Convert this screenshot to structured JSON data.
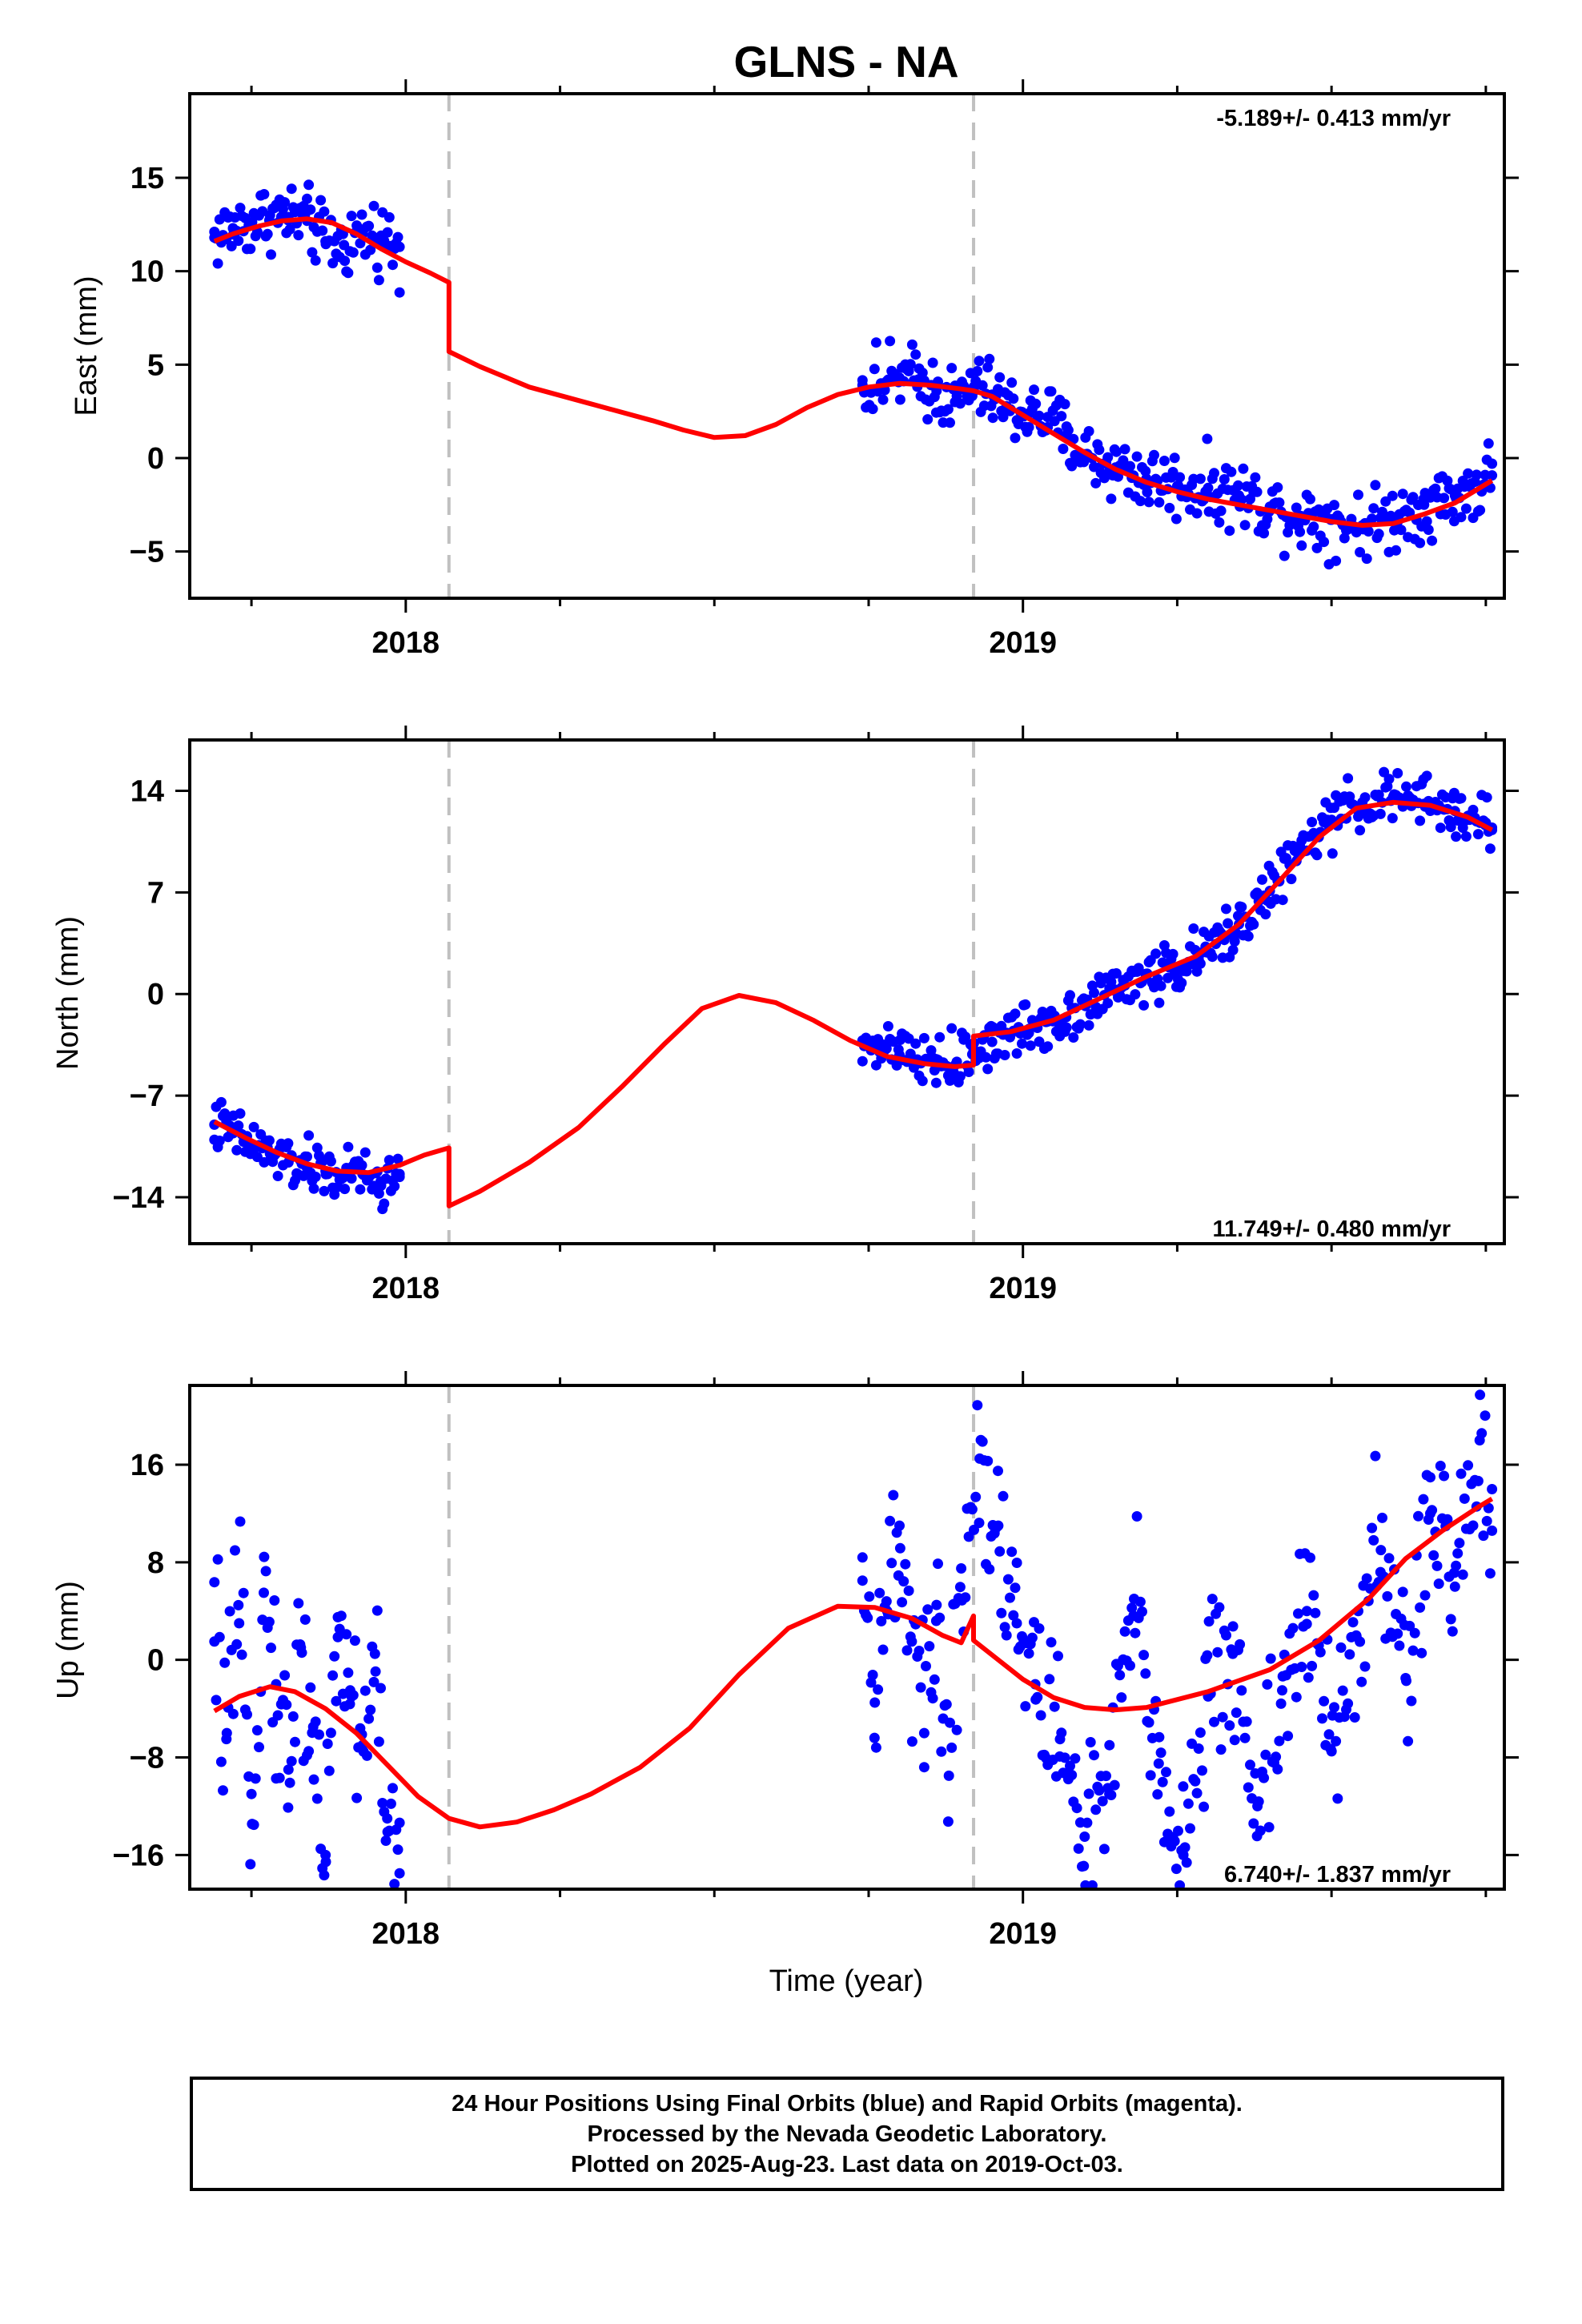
{
  "title": "GLNS - NA",
  "xlabel": "Time (year)",
  "colors": {
    "data": "#0000ff",
    "model": "#ff0000",
    "break_line": "#c0c0c0"
  },
  "footer": {
    "line1": "24 Hour Positions Using Final Orbits (blue) and Rapid Orbits (magenta).",
    "line2": "Processed by the Nevada Geodetic Laboratory.",
    "line3": "Plotted on 2025-Aug-23. Last data on 2019-Oct-03."
  },
  "chart_data": [
    {
      "type": "scatter",
      "ylabel": "East (mm)",
      "rate_text": "-5.189+/- 0.413 mm/yr",
      "xlim": [
        2017.65,
        2019.78
      ],
      "ylim": [
        -7.5,
        19.5
      ],
      "xticks": [
        2018,
        2019
      ],
      "yticks": [
        -5,
        0,
        5,
        10,
        15
      ],
      "ytick_labels": [
        "−5",
        "0",
        "5",
        "10",
        "15"
      ],
      "breaks": [
        2018.07,
        2018.92
      ],
      "data_segments": [
        {
          "x": [
            2017.69,
            2017.72,
            2017.75,
            2017.78,
            2017.81,
            2017.84,
            2017.87,
            2017.9,
            2017.93,
            2017.96,
            2017.99
          ],
          "y": [
            11.8,
            12.3,
            12.6,
            13.0,
            12.9,
            12.7,
            11.6,
            11.4,
            12.0,
            11.9,
            11.3
          ]
        },
        {
          "x": [
            2018.74,
            2018.77,
            2018.8,
            2018.83,
            2018.86,
            2018.89,
            2018.92,
            2018.95,
            2018.98,
            2019.01,
            2019.04,
            2019.07,
            2019.1,
            2019.15,
            2019.2,
            2019.25,
            2019.3,
            2019.35,
            2019.4,
            2019.45,
            2019.5,
            2019.55,
            2019.6,
            2019.65,
            2019.7,
            2019.75,
            2019.76
          ],
          "y": [
            3.9,
            4.0,
            4.3,
            4.2,
            3.6,
            3.0,
            3.8,
            3.4,
            2.6,
            2.4,
            2.2,
            1.2,
            0.2,
            -0.5,
            -1.1,
            -1.5,
            -1.6,
            -2.0,
            -2.6,
            -3.1,
            -3.3,
            -3.6,
            -3.2,
            -2.5,
            -2.0,
            -1.4,
            -0.3
          ]
        }
      ],
      "model": {
        "x": [
          2017.69,
          2017.72,
          2017.76,
          2017.8,
          2017.84,
          2017.88,
          2017.92,
          2017.96,
          2018.0,
          2018.04,
          2018.07,
          2018.07,
          2018.12,
          2018.2,
          2018.3,
          2018.4,
          2018.45,
          2018.5,
          2018.55,
          2018.6,
          2018.65,
          2018.7,
          2018.75,
          2018.8,
          2018.85,
          2018.9,
          2018.92,
          2018.95,
          2019.0,
          2019.05,
          2019.1,
          2019.15,
          2019.2,
          2019.25,
          2019.3,
          2019.35,
          2019.4,
          2019.45,
          2019.5,
          2019.55,
          2019.6,
          2019.65,
          2019.7,
          2019.76
        ],
        "y": [
          11.6,
          12.0,
          12.4,
          12.7,
          12.8,
          12.6,
          12.0,
          11.2,
          10.5,
          9.9,
          9.4,
          5.7,
          4.9,
          3.8,
          2.9,
          2.0,
          1.5,
          1.1,
          1.2,
          1.8,
          2.7,
          3.4,
          3.8,
          4.0,
          3.9,
          3.7,
          3.6,
          3.3,
          2.3,
          1.3,
          0.3,
          -0.6,
          -1.3,
          -1.8,
          -2.2,
          -2.5,
          -2.8,
          -3.1,
          -3.4,
          -3.6,
          -3.5,
          -3.0,
          -2.4,
          -1.2
        ]
      }
    },
    {
      "type": "scatter",
      "ylabel": "North (mm)",
      "rate_text": "11.749+/- 0.480 mm/yr",
      "xlim": [
        2017.65,
        2019.78
      ],
      "ylim": [
        -17.2,
        17.5
      ],
      "xticks": [
        2018,
        2019
      ],
      "yticks": [
        -14,
        -7,
        0,
        7,
        14
      ],
      "ytick_labels": [
        "−14",
        "−7",
        "0",
        "7",
        "14"
      ],
      "breaks": [
        2018.07,
        2018.92
      ],
      "data_segments": [
        {
          "x": [
            2017.69,
            2017.72,
            2017.75,
            2017.78,
            2017.81,
            2017.84,
            2017.87,
            2017.9,
            2017.93,
            2017.96,
            2017.99
          ],
          "y": [
            -9.0,
            -9.6,
            -10.4,
            -11.0,
            -11.6,
            -12.0,
            -12.2,
            -12.5,
            -12.4,
            -13.2,
            -12.6
          ]
        },
        {
          "x": [
            2018.74,
            2018.77,
            2018.8,
            2018.83,
            2018.86,
            2018.89,
            2018.92,
            2018.95,
            2018.98,
            2019.01,
            2019.04,
            2019.07,
            2019.1,
            2019.15,
            2019.2,
            2019.25,
            2019.3,
            2019.35,
            2019.4,
            2019.45,
            2019.5,
            2019.55,
            2019.6,
            2019.65,
            2019.7,
            2019.75,
            2019.76
          ],
          "y": [
            -3.2,
            -3.8,
            -4.2,
            -4.6,
            -4.5,
            -4.9,
            -3.8,
            -3.3,
            -2.8,
            -2.4,
            -1.9,
            -1.6,
            -0.6,
            0.2,
            1.2,
            1.8,
            2.9,
            4.8,
            7.1,
            9.9,
            12.0,
            13.2,
            13.6,
            13.1,
            12.6,
            11.8,
            11.3
          ]
        }
      ],
      "model": {
        "x": [
          2017.69,
          2017.74,
          2017.79,
          2017.84,
          2017.89,
          2017.94,
          2017.99,
          2018.03,
          2018.07,
          2018.07,
          2018.12,
          2018.2,
          2018.28,
          2018.35,
          2018.42,
          2018.48,
          2018.54,
          2018.6,
          2018.66,
          2018.72,
          2018.78,
          2018.84,
          2018.89,
          2018.92,
          2018.92,
          2018.98,
          2019.05,
          2019.12,
          2019.2,
          2019.28,
          2019.35,
          2019.42,
          2019.48,
          2019.54,
          2019.6,
          2019.66,
          2019.72,
          2019.76
        ],
        "y": [
          -8.8,
          -9.9,
          -10.9,
          -11.7,
          -12.2,
          -12.3,
          -11.8,
          -11.1,
          -10.6,
          -14.6,
          -13.6,
          -11.6,
          -9.2,
          -6.4,
          -3.4,
          -1.0,
          -0.1,
          -0.6,
          -1.8,
          -3.2,
          -4.3,
          -4.8,
          -5.0,
          -4.9,
          -2.9,
          -2.6,
          -1.8,
          -0.4,
          1.2,
          2.6,
          4.8,
          8.0,
          10.8,
          12.8,
          13.2,
          13.0,
          12.2,
          11.3
        ]
      }
    },
    {
      "type": "scatter",
      "ylabel": "Up (mm)",
      "rate_text": "6.740+/- 1.837 mm/yr",
      "xlim": [
        2017.65,
        2019.78
      ],
      "ylim": [
        -18.8,
        22.5
      ],
      "xticks": [
        2018,
        2019
      ],
      "yticks": [
        -16,
        -8,
        0,
        8,
        16
      ],
      "ytick_labels": [
        "−16",
        "−8",
        "0",
        "8",
        "16"
      ],
      "breaks": [
        2018.07,
        2018.92
      ],
      "data_segments": [
        {
          "x": [
            2017.69,
            2017.71,
            2017.73,
            2017.75,
            2017.77,
            2017.79,
            2017.81,
            2017.83,
            2017.85,
            2017.87,
            2017.89,
            2017.91,
            2017.93,
            2017.95,
            2017.97,
            2017.99
          ],
          "y": [
            1.5,
            -6.0,
            3.0,
            -11.0,
            5.5,
            -2.0,
            -9.0,
            1.0,
            -5.5,
            -16.0,
            3.5,
            -2.5,
            -7.0,
            0.5,
            -13.0,
            -17.5
          ]
        },
        {
          "x": [
            2018.74,
            2018.76,
            2018.78,
            2018.8,
            2018.82,
            2018.84,
            2018.86,
            2018.88,
            2018.9,
            2018.93,
            2018.96,
            2018.99,
            2019.02,
            2019.06,
            2019.1,
            2019.14,
            2019.18,
            2019.22,
            2019.26,
            2019.3,
            2019.34,
            2019.38,
            2019.42,
            2019.46,
            2019.5,
            2019.54,
            2019.58,
            2019.62,
            2019.66,
            2019.7,
            2019.74,
            2019.76
          ],
          "y": [
            6.5,
            -3.5,
            4.0,
            11.0,
            1.5,
            -6.0,
            4.5,
            -9.5,
            7.5,
            16.5,
            11.0,
            3.0,
            -2.0,
            -6.5,
            -14.5,
            -11.0,
            5.0,
            -8.5,
            -16.0,
            -3.0,
            0.5,
            -12.0,
            -2.5,
            4.0,
            -7.5,
            2.0,
            9.0,
            -1.5,
            12.0,
            6.0,
            18.0,
            14.0
          ]
        }
      ],
      "model": {
        "x": [
          2017.69,
          2017.73,
          2017.78,
          2017.82,
          2017.87,
          2017.92,
          2017.97,
          2018.02,
          2018.07,
          2018.12,
          2018.18,
          2018.24,
          2018.3,
          2018.38,
          2018.46,
          2018.54,
          2018.62,
          2018.7,
          2018.76,
          2018.82,
          2018.87,
          2018.9,
          2018.92,
          2018.92,
          2018.96,
          2019.0,
          2019.05,
          2019.1,
          2019.15,
          2019.2,
          2019.3,
          2019.4,
          2019.48,
          2019.56,
          2019.62,
          2019.68,
          2019.74,
          2019.76
        ],
        "y": [
          -4.2,
          -3.0,
          -2.2,
          -2.6,
          -4.0,
          -6.0,
          -8.6,
          -11.2,
          -13.0,
          -13.7,
          -13.3,
          -12.3,
          -11.0,
          -8.8,
          -5.6,
          -1.2,
          2.6,
          4.4,
          4.3,
          3.4,
          2.0,
          1.4,
          3.6,
          1.6,
          0.0,
          -1.6,
          -3.1,
          -3.9,
          -4.1,
          -3.9,
          -2.6,
          -0.8,
          1.6,
          5.0,
          8.3,
          10.6,
          12.6,
          13.2
        ]
      }
    }
  ]
}
